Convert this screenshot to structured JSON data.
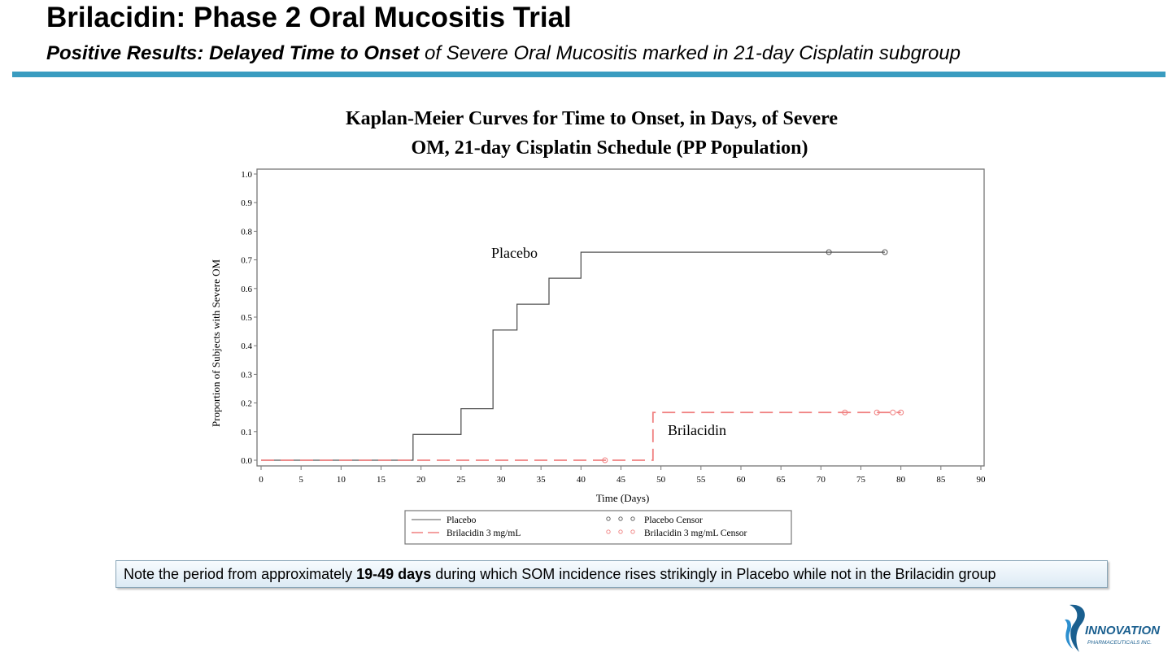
{
  "slide": {
    "title": "Brilacidin: Phase 2 Oral Mucositis Trial",
    "subtitle_bold": "Positive Results: Delayed Time to Onset",
    "subtitle_rest": " of Severe Oral Mucositis marked in 21-day Cisplatin subgroup"
  },
  "note": {
    "prefix": "Note the period from approximately ",
    "bold": "19-49 days",
    "suffix": " during which SOM incidence rises strikingly in Placebo while not in the Brilacidin group"
  },
  "logo": {
    "text": "INNOVATION",
    "subtext": "PHARMACEUTICALS INC.",
    "color": "#1a5f8f"
  },
  "chart_data": {
    "type": "line",
    "title_line1": "Kaplan-Meier Curves for Time to Onset, in Days, of Severe",
    "title_line2": "OM, 21-day Cisplatin Schedule (PP Population)",
    "xlabel": "Time (Days)",
    "ylabel": "Proportion of Subjects with Severe OM",
    "xlim": [
      0,
      90
    ],
    "ylim": [
      0,
      1.0
    ],
    "xticks": [
      "0",
      "5",
      "10",
      "15",
      "20",
      "25",
      "30",
      "35",
      "40",
      "45",
      "50",
      "55",
      "60",
      "65",
      "70",
      "75",
      "80",
      "85",
      "90"
    ],
    "yticks": [
      "0.0",
      "0.1",
      "0.2",
      "0.3",
      "0.4",
      "0.5",
      "0.6",
      "0.7",
      "0.8",
      "0.9",
      "1.0"
    ],
    "grid": false,
    "legend_position": "bottom",
    "series": [
      {
        "name": "Placebo",
        "label": "Placebo",
        "color": "#555555",
        "style": "solid",
        "steps": [
          [
            0,
            0.0
          ],
          [
            19,
            0.09
          ],
          [
            25,
            0.18
          ],
          [
            29,
            0.455
          ],
          [
            32,
            0.545
          ],
          [
            36,
            0.636
          ],
          [
            40,
            0.727
          ],
          [
            78,
            0.727
          ]
        ],
        "censor": [
          [
            71,
            0.727
          ],
          [
            78,
            0.727
          ]
        ]
      },
      {
        "name": "Brilacidin 3 mg/mL",
        "label": "Brilacidin",
        "color": "#f08080",
        "style": "dashed",
        "steps": [
          [
            0,
            0.0
          ],
          [
            49,
            0.167
          ],
          [
            80,
            0.167
          ]
        ],
        "censor": [
          [
            43,
            0.0
          ],
          [
            73,
            0.167
          ],
          [
            77,
            0.167
          ],
          [
            79,
            0.167
          ],
          [
            80,
            0.167
          ]
        ]
      }
    ],
    "legend": [
      {
        "label": "Placebo",
        "kind": "line",
        "series": 0
      },
      {
        "label": "Placebo Censor",
        "kind": "censor",
        "series": 0
      },
      {
        "label": "Brilacidin 3 mg/mL",
        "kind": "line",
        "series": 1
      },
      {
        "label": "Brilacidin 3 mg/mL Censor",
        "kind": "censor",
        "series": 1
      }
    ]
  }
}
